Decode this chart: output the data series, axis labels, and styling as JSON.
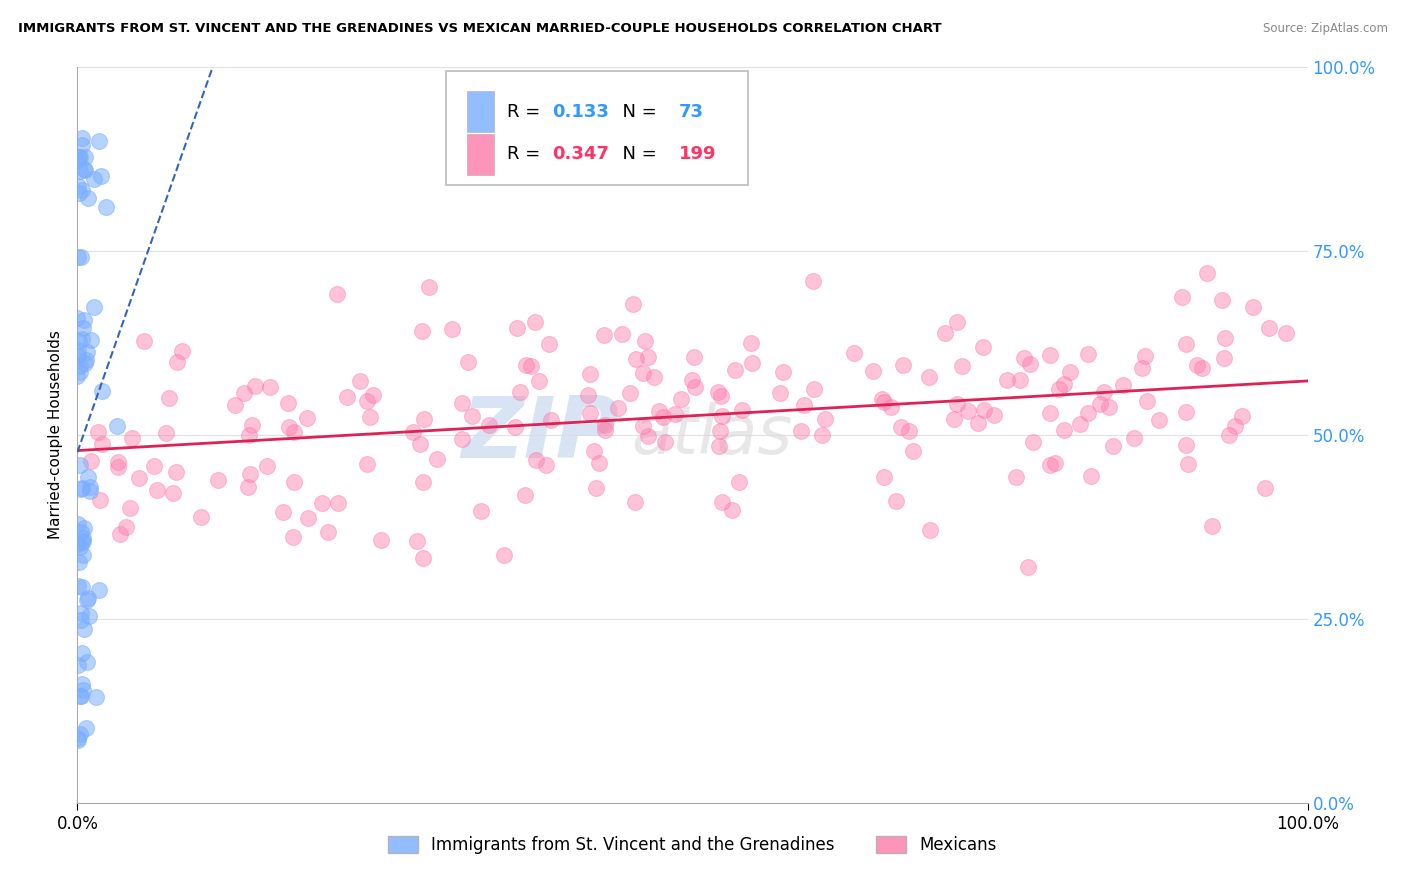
{
  "title": "IMMIGRANTS FROM ST. VINCENT AND THE GRENADINES VS MEXICAN MARRIED-COUPLE HOUSEHOLDS CORRELATION CHART",
  "source": "Source: ZipAtlas.com",
  "ylabel": "Married-couple Households",
  "yticks": [
    "0.0%",
    "25.0%",
    "50.0%",
    "75.0%",
    "100.0%"
  ],
  "ytick_vals": [
    0,
    25,
    50,
    75,
    100
  ],
  "legend_blue_R": "0.133",
  "legend_blue_N": "73",
  "legend_pink_R": "0.347",
  "legend_pink_N": "199",
  "legend_label_blue": "Immigrants from St. Vincent and the Grenadines",
  "legend_label_pink": "Mexicans",
  "blue_color": "#7aadff",
  "pink_color": "#ff7aaa",
  "blue_line_color": "#3366bb",
  "pink_line_color": "#dd2255",
  "watermark_zip": "ZIP",
  "watermark_atlas": "atlas",
  "blue_seed": 12,
  "pink_seed": 7
}
